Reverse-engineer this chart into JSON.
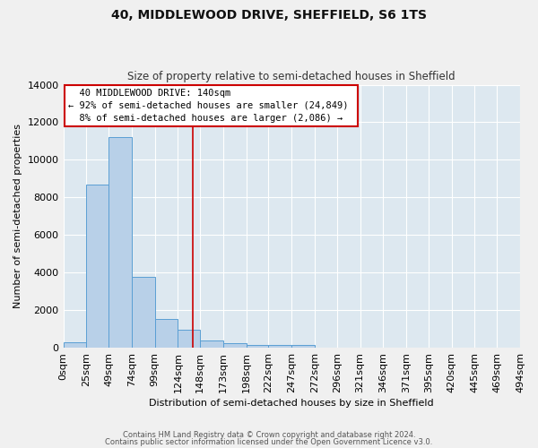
{
  "title": "40, MIDDLEWOOD DRIVE, SHEFFIELD, S6 1TS",
  "subtitle": "Size of property relative to semi-detached houses in Sheffield",
  "xlabel": "Distribution of semi-detached houses by size in Sheffield",
  "ylabel": "Number of semi-detached properties",
  "bin_labels": [
    "0sqm",
    "25sqm",
    "49sqm",
    "74sqm",
    "99sqm",
    "124sqm",
    "148sqm",
    "173sqm",
    "198sqm",
    "222sqm",
    "247sqm",
    "272sqm",
    "296sqm",
    "321sqm",
    "346sqm",
    "371sqm",
    "395sqm",
    "420sqm",
    "445sqm",
    "469sqm",
    "494sqm"
  ],
  "bin_edges": [
    0,
    25,
    49,
    74,
    99,
    124,
    148,
    173,
    198,
    222,
    247,
    272,
    296,
    321,
    346,
    371,
    395,
    420,
    445,
    469,
    494
  ],
  "bar_heights": [
    300,
    8700,
    11200,
    3750,
    1550,
    950,
    380,
    230,
    150,
    130,
    130,
    0,
    0,
    0,
    0,
    0,
    0,
    0,
    0,
    0
  ],
  "bar_color": "#b8d0e8",
  "bar_edge_color": "#5a9fd4",
  "property_line_x": 140,
  "property_line_color": "#cc0000",
  "annotation_text": "  40 MIDDLEWOOD DRIVE: 140sqm  \n← 92% of semi-detached houses are smaller (24,849)\n  8% of semi-detached houses are larger (2,086) →  ",
  "annotation_box_color": "#ffffff",
  "annotation_box_edge": "#cc0000",
  "ylim": [
    0,
    14000
  ],
  "background_color": "#dde8f0",
  "grid_color": "#ffffff",
  "footer_line1": "Contains HM Land Registry data © Crown copyright and database right 2024.",
  "footer_line2": "Contains public sector information licensed under the Open Government Licence v3.0."
}
